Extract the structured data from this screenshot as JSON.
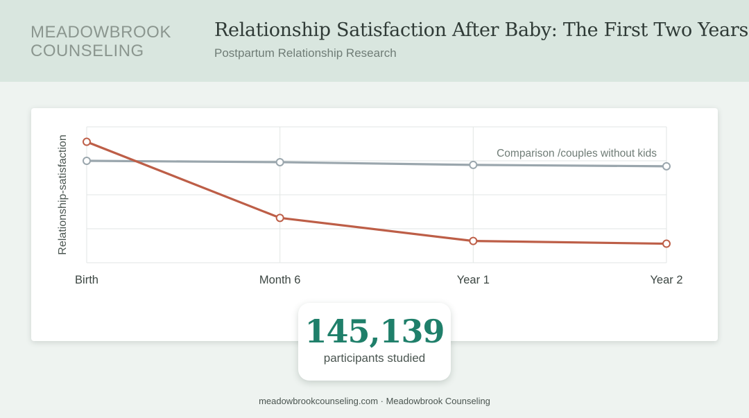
{
  "header": {
    "brand_line1": "MEADOWBROOK",
    "brand_line2": "COUNSELING",
    "title": "Relationship Satisfaction After Baby: The First Two Years",
    "subtitle": "Postpartum Relationship Research"
  },
  "chart_data": {
    "type": "line",
    "categories": [
      "Birth",
      "Month 6",
      "Year 1",
      "Year 2"
    ],
    "ylabel": "Relationship-satisfaction",
    "xlabel": "",
    "ylim": [
      0,
      100
    ],
    "grid": true,
    "series": [
      {
        "values": [
          89,
          33,
          16,
          14
        ],
        "color": "#bd5e47"
      },
      {
        "name": "Comparison /couples without kids",
        "values": [
          75,
          74,
          72,
          71
        ],
        "color": "#9aa6ad"
      }
    ]
  },
  "stat": {
    "number": "145,139",
    "label": "participants studied"
  },
  "footer": {
    "text": "meadowbrookcounseling.com · Meadowbrook Counseling"
  },
  "colors": {
    "header_bg": "#d9e6df",
    "accent": "#1f7f6a",
    "main_series": "#bd5e47",
    "comparison_series": "#9aa6ad"
  }
}
